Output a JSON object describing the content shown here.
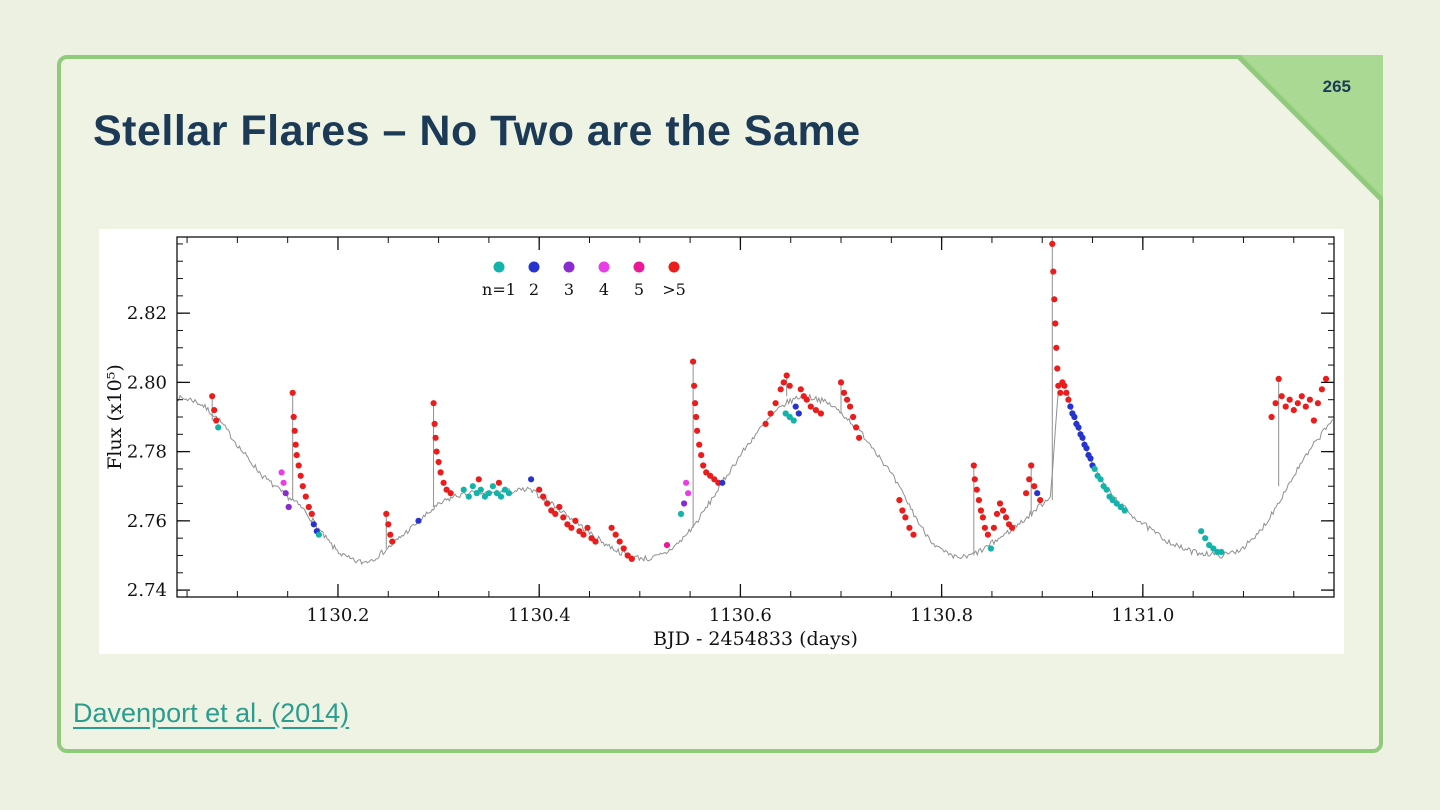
{
  "slide": {
    "page_number": "265",
    "title": "Stellar Flares – No Two are the Same",
    "citation": "Davenport et al. (2014)"
  },
  "colors": {
    "page_bg": "#edf1e2",
    "border_green": "#8fcb7a",
    "fold_green": "#a9d992",
    "title_navy": "#1c3a56",
    "citation_teal": "#2a9d8f",
    "curve_gray": "#909090",
    "axis_black": "#111111",
    "chart_bg": "#ffffff"
  },
  "chart_data": {
    "type": "scatter",
    "title": "",
    "xlabel": "BJD - 2454833 (days)",
    "ylabel": "Flux (x10⁵)",
    "xlim": [
      1130.04,
      1131.19
    ],
    "ylim": [
      2.738,
      2.842
    ],
    "xticks": [
      1130.2,
      1130.4,
      1130.6,
      1130.8,
      1131.0
    ],
    "yticks": [
      2.74,
      2.76,
      2.78,
      2.8,
      2.82
    ],
    "x_minor_step": 0.05,
    "y_minor_step": 0.005,
    "grid": false,
    "legend_position": "top-center-inside",
    "legend_labels": [
      "n=1",
      "2",
      "3",
      "4",
      "5",
      ">5"
    ],
    "class_colors": [
      "#12b3aa",
      "#2733cf",
      "#8a2bd0",
      "#e83ee8",
      "#ea1a96",
      "#ea1c1c"
    ],
    "baseline_series_name": "quiescent light curve",
    "baseline": [
      [
        1130.04,
        2.7955
      ],
      [
        1130.055,
        2.795
      ],
      [
        1130.065,
        2.7935
      ],
      [
        1130.075,
        2.791
      ],
      [
        1130.085,
        2.788
      ],
      [
        1130.095,
        2.784
      ],
      [
        1130.105,
        2.78
      ],
      [
        1130.115,
        2.7765
      ],
      [
        1130.125,
        2.773
      ],
      [
        1130.135,
        2.7705
      ],
      [
        1130.145,
        2.768
      ],
      [
        1130.155,
        2.766
      ],
      [
        1130.165,
        2.7635
      ],
      [
        1130.175,
        2.76
      ],
      [
        1130.185,
        2.756
      ],
      [
        1130.195,
        2.7525
      ],
      [
        1130.205,
        2.75
      ],
      [
        1130.215,
        2.7485
      ],
      [
        1130.225,
        2.748
      ],
      [
        1130.235,
        2.749
      ],
      [
        1130.245,
        2.751
      ],
      [
        1130.255,
        2.7535
      ],
      [
        1130.265,
        2.756
      ],
      [
        1130.275,
        2.7585
      ],
      [
        1130.285,
        2.761
      ],
      [
        1130.295,
        2.7635
      ],
      [
        1130.305,
        2.7655
      ],
      [
        1130.315,
        2.767
      ],
      [
        1130.33,
        2.768
      ],
      [
        1130.35,
        2.768
      ],
      [
        1130.37,
        2.7685
      ],
      [
        1130.39,
        2.769
      ],
      [
        1130.405,
        2.7665
      ],
      [
        1130.42,
        2.7635
      ],
      [
        1130.435,
        2.76
      ],
      [
        1130.45,
        2.7565
      ],
      [
        1130.465,
        2.7535
      ],
      [
        1130.48,
        2.751
      ],
      [
        1130.495,
        2.7495
      ],
      [
        1130.51,
        2.749
      ],
      [
        1130.525,
        2.7505
      ],
      [
        1130.54,
        2.754
      ],
      [
        1130.555,
        2.759
      ],
      [
        1130.57,
        2.7655
      ],
      [
        1130.585,
        2.7725
      ],
      [
        1130.6,
        2.779
      ],
      [
        1130.615,
        2.785
      ],
      [
        1130.63,
        2.79
      ],
      [
        1130.645,
        2.794
      ],
      [
        1130.66,
        2.796
      ],
      [
        1130.675,
        2.7955
      ],
      [
        1130.69,
        2.7935
      ],
      [
        1130.705,
        2.79
      ],
      [
        1130.72,
        2.7855
      ],
      [
        1130.735,
        2.78
      ],
      [
        1130.75,
        2.7735
      ],
      [
        1130.765,
        2.766
      ],
      [
        1130.78,
        2.758
      ],
      [
        1130.795,
        2.7525
      ],
      [
        1130.81,
        2.7495
      ],
      [
        1130.825,
        2.7495
      ],
      [
        1130.84,
        2.7515
      ],
      [
        1130.855,
        2.7545
      ],
      [
        1130.87,
        2.7575
      ],
      [
        1130.885,
        2.761
      ],
      [
        1130.9,
        2.765
      ],
      [
        1130.908,
        2.767
      ],
      [
        1130.916,
        2.797
      ],
      [
        1130.924,
        2.7975
      ],
      [
        1130.932,
        2.79
      ],
      [
        1130.94,
        2.7835
      ],
      [
        1130.95,
        2.7765
      ],
      [
        1130.96,
        2.771
      ],
      [
        1130.975,
        2.7655
      ],
      [
        1130.99,
        2.7615
      ],
      [
        1131.005,
        2.758
      ],
      [
        1131.02,
        2.755
      ],
      [
        1131.035,
        2.7525
      ],
      [
        1131.05,
        2.751
      ],
      [
        1131.065,
        2.7505
      ],
      [
        1131.08,
        2.75
      ],
      [
        1131.095,
        2.7515
      ],
      [
        1131.11,
        2.7545
      ],
      [
        1131.125,
        2.7605
      ],
      [
        1131.14,
        2.768
      ],
      [
        1131.155,
        2.7755
      ],
      [
        1131.17,
        2.782
      ],
      [
        1131.185,
        2.788
      ],
      [
        1131.19,
        2.79
      ]
    ],
    "spikes": [
      [
        1130.075,
        2.789,
        2.796
      ],
      [
        1130.155,
        2.766,
        2.797
      ],
      [
        1130.248,
        2.752,
        2.762
      ],
      [
        1130.295,
        2.764,
        2.794
      ],
      [
        1130.553,
        2.758,
        2.806
      ],
      [
        1130.646,
        2.796,
        2.802
      ],
      [
        1130.7,
        2.791,
        2.8
      ],
      [
        1130.832,
        2.75,
        2.776
      ],
      [
        1130.889,
        2.762,
        2.776
      ],
      [
        1130.91,
        2.766,
        2.842
      ],
      [
        1131.135,
        2.77,
        2.801
      ]
    ],
    "flares": [
      [
        1130.075,
        2.796,
        5
      ],
      [
        1130.077,
        2.792,
        5
      ],
      [
        1130.079,
        2.789,
        5
      ],
      [
        1130.081,
        2.787,
        0
      ],
      [
        1130.144,
        2.774,
        3
      ],
      [
        1130.146,
        2.771,
        3
      ],
      [
        1130.148,
        2.768,
        2
      ],
      [
        1130.151,
        2.764,
        2
      ],
      [
        1130.155,
        2.797,
        5
      ],
      [
        1130.156,
        2.79,
        5
      ],
      [
        1130.157,
        2.786,
        5
      ],
      [
        1130.158,
        2.782,
        5
      ],
      [
        1130.159,
        2.779,
        5
      ],
      [
        1130.161,
        2.776,
        5
      ],
      [
        1130.163,
        2.773,
        5
      ],
      [
        1130.165,
        2.77,
        5
      ],
      [
        1130.168,
        2.767,
        5
      ],
      [
        1130.171,
        2.764,
        5
      ],
      [
        1130.174,
        2.762,
        5
      ],
      [
        1130.176,
        2.759,
        1
      ],
      [
        1130.179,
        2.757,
        1
      ],
      [
        1130.181,
        2.756,
        0
      ],
      [
        1130.248,
        2.762,
        5
      ],
      [
        1130.25,
        2.759,
        5
      ],
      [
        1130.252,
        2.756,
        5
      ],
      [
        1130.254,
        2.754,
        5
      ],
      [
        1130.28,
        2.76,
        1
      ],
      [
        1130.295,
        2.794,
        5
      ],
      [
        1130.296,
        2.788,
        5
      ],
      [
        1130.297,
        2.784,
        5
      ],
      [
        1130.298,
        2.78,
        5
      ],
      [
        1130.3,
        2.777,
        5
      ],
      [
        1130.302,
        2.774,
        5
      ],
      [
        1130.305,
        2.771,
        5
      ],
      [
        1130.308,
        2.769,
        5
      ],
      [
        1130.312,
        2.768,
        5
      ],
      [
        1130.325,
        2.769,
        0
      ],
      [
        1130.33,
        2.767,
        0
      ],
      [
        1130.334,
        2.77,
        0
      ],
      [
        1130.338,
        2.768,
        0
      ],
      [
        1130.342,
        2.769,
        0
      ],
      [
        1130.346,
        2.767,
        0
      ],
      [
        1130.35,
        2.768,
        0
      ],
      [
        1130.354,
        2.77,
        0
      ],
      [
        1130.358,
        2.768,
        0
      ],
      [
        1130.362,
        2.767,
        0
      ],
      [
        1130.366,
        2.769,
        0
      ],
      [
        1130.37,
        2.768,
        0
      ],
      [
        1130.34,
        2.772,
        5
      ],
      [
        1130.36,
        2.771,
        5
      ],
      [
        1130.392,
        2.772,
        1
      ],
      [
        1130.4,
        2.769,
        5
      ],
      [
        1130.404,
        2.767,
        5
      ],
      [
        1130.408,
        2.765,
        5
      ],
      [
        1130.412,
        2.763,
        5
      ],
      [
        1130.416,
        2.762,
        5
      ],
      [
        1130.42,
        2.764,
        5
      ],
      [
        1130.424,
        2.761,
        5
      ],
      [
        1130.428,
        2.759,
        5
      ],
      [
        1130.432,
        2.758,
        5
      ],
      [
        1130.436,
        2.76,
        5
      ],
      [
        1130.44,
        2.757,
        5
      ],
      [
        1130.444,
        2.756,
        5
      ],
      [
        1130.448,
        2.758,
        5
      ],
      [
        1130.452,
        2.755,
        5
      ],
      [
        1130.456,
        2.754,
        5
      ],
      [
        1130.472,
        2.758,
        5
      ],
      [
        1130.476,
        2.756,
        5
      ],
      [
        1130.48,
        2.754,
        5
      ],
      [
        1130.484,
        2.752,
        5
      ],
      [
        1130.488,
        2.75,
        5
      ],
      [
        1130.492,
        2.749,
        5
      ],
      [
        1130.527,
        2.753,
        4
      ],
      [
        1130.541,
        2.762,
        0
      ],
      [
        1130.544,
        2.765,
        2
      ],
      [
        1130.546,
        2.771,
        3
      ],
      [
        1130.548,
        2.768,
        3
      ],
      [
        1130.553,
        2.806,
        5
      ],
      [
        1130.554,
        2.799,
        5
      ],
      [
        1130.555,
        2.794,
        5
      ],
      [
        1130.556,
        2.79,
        5
      ],
      [
        1130.557,
        2.786,
        5
      ],
      [
        1130.559,
        2.782,
        5
      ],
      [
        1130.561,
        2.779,
        5
      ],
      [
        1130.563,
        2.776,
        5
      ],
      [
        1130.566,
        2.774,
        5
      ],
      [
        1130.57,
        2.773,
        5
      ],
      [
        1130.574,
        2.772,
        5
      ],
      [
        1130.578,
        2.771,
        5
      ],
      [
        1130.582,
        2.771,
        1
      ],
      [
        1130.625,
        2.788,
        5
      ],
      [
        1130.63,
        2.791,
        5
      ],
      [
        1130.635,
        2.794,
        5
      ],
      [
        1130.64,
        2.798,
        5
      ],
      [
        1130.643,
        2.8,
        5
      ],
      [
        1130.646,
        2.802,
        5
      ],
      [
        1130.649,
        2.799,
        5
      ],
      [
        1130.645,
        2.791,
        0
      ],
      [
        1130.649,
        2.79,
        0
      ],
      [
        1130.653,
        2.789,
        0
      ],
      [
        1130.655,
        2.793,
        1
      ],
      [
        1130.658,
        2.791,
        1
      ],
      [
        1130.66,
        2.798,
        5
      ],
      [
        1130.663,
        2.796,
        5
      ],
      [
        1130.666,
        2.795,
        5
      ],
      [
        1130.67,
        2.793,
        5
      ],
      [
        1130.675,
        2.792,
        5
      ],
      [
        1130.68,
        2.791,
        5
      ],
      [
        1130.7,
        2.8,
        5
      ],
      [
        1130.703,
        2.797,
        5
      ],
      [
        1130.706,
        2.795,
        5
      ],
      [
        1130.709,
        2.793,
        5
      ],
      [
        1130.712,
        2.79,
        5
      ],
      [
        1130.715,
        2.787,
        5
      ],
      [
        1130.718,
        2.784,
        5
      ],
      [
        1130.758,
        2.766,
        5
      ],
      [
        1130.761,
        2.763,
        5
      ],
      [
        1130.764,
        2.761,
        5
      ],
      [
        1130.768,
        2.758,
        5
      ],
      [
        1130.772,
        2.756,
        5
      ],
      [
        1130.832,
        2.776,
        5
      ],
      [
        1130.833,
        2.772,
        5
      ],
      [
        1130.835,
        2.769,
        5
      ],
      [
        1130.837,
        2.766,
        5
      ],
      [
        1130.839,
        2.763,
        5
      ],
      [
        1130.841,
        2.761,
        5
      ],
      [
        1130.843,
        2.758,
        5
      ],
      [
        1130.846,
        2.756,
        5
      ],
      [
        1130.849,
        2.752,
        0
      ],
      [
        1130.852,
        2.758,
        5
      ],
      [
        1130.855,
        2.762,
        5
      ],
      [
        1130.858,
        2.765,
        5
      ],
      [
        1130.861,
        2.763,
        5
      ],
      [
        1130.864,
        2.761,
        5
      ],
      [
        1130.867,
        2.759,
        5
      ],
      [
        1130.87,
        2.758,
        5
      ],
      [
        1130.884,
        2.768,
        5
      ],
      [
        1130.887,
        2.772,
        5
      ],
      [
        1130.889,
        2.776,
        5
      ],
      [
        1130.892,
        2.77,
        5
      ],
      [
        1130.895,
        2.768,
        1
      ],
      [
        1130.898,
        2.766,
        5
      ],
      [
        1130.91,
        2.84,
        5
      ],
      [
        1130.911,
        2.832,
        5
      ],
      [
        1130.912,
        2.824,
        5
      ],
      [
        1130.913,
        2.817,
        5
      ],
      [
        1130.914,
        2.81,
        5
      ],
      [
        1130.915,
        2.804,
        5
      ],
      [
        1130.916,
        2.799,
        5
      ],
      [
        1130.918,
        2.797,
        5
      ],
      [
        1130.92,
        2.8,
        5
      ],
      [
        1130.922,
        2.799,
        5
      ],
      [
        1130.924,
        2.797,
        5
      ],
      [
        1130.926,
        2.795,
        5
      ],
      [
        1130.928,
        2.793,
        1
      ],
      [
        1130.93,
        2.791,
        1
      ],
      [
        1130.932,
        2.79,
        1
      ],
      [
        1130.934,
        2.788,
        1
      ],
      [
        1130.936,
        2.787,
        1
      ],
      [
        1130.938,
        2.785,
        1
      ],
      [
        1130.94,
        2.784,
        1
      ],
      [
        1130.942,
        2.782,
        1
      ],
      [
        1130.944,
        2.781,
        1
      ],
      [
        1130.946,
        2.779,
        1
      ],
      [
        1130.948,
        2.778,
        1
      ],
      [
        1130.95,
        2.776,
        1
      ],
      [
        1130.952,
        2.775,
        0
      ],
      [
        1130.955,
        2.773,
        0
      ],
      [
        1130.958,
        2.772,
        0
      ],
      [
        1130.961,
        2.77,
        0
      ],
      [
        1130.964,
        2.769,
        0
      ],
      [
        1130.967,
        2.767,
        0
      ],
      [
        1130.97,
        2.766,
        0
      ],
      [
        1130.974,
        2.765,
        0
      ],
      [
        1130.978,
        2.764,
        0
      ],
      [
        1130.982,
        2.763,
        0
      ],
      [
        1131.058,
        2.757,
        0
      ],
      [
        1131.062,
        2.755,
        0
      ],
      [
        1131.066,
        2.753,
        0
      ],
      [
        1131.07,
        2.752,
        0
      ],
      [
        1131.074,
        2.751,
        0
      ],
      [
        1131.078,
        2.751,
        0
      ],
      [
        1131.128,
        2.79,
        5
      ],
      [
        1131.132,
        2.794,
        5
      ],
      [
        1131.135,
        2.801,
        5
      ],
      [
        1131.138,
        2.796,
        5
      ],
      [
        1131.142,
        2.793,
        5
      ],
      [
        1131.146,
        2.795,
        5
      ],
      [
        1131.15,
        2.792,
        5
      ],
      [
        1131.154,
        2.794,
        5
      ],
      [
        1131.158,
        2.796,
        5
      ],
      [
        1131.162,
        2.793,
        5
      ],
      [
        1131.166,
        2.795,
        5
      ],
      [
        1131.17,
        2.789,
        5
      ],
      [
        1131.174,
        2.794,
        5
      ],
      [
        1131.178,
        2.798,
        5
      ],
      [
        1131.182,
        2.801,
        5
      ]
    ]
  }
}
